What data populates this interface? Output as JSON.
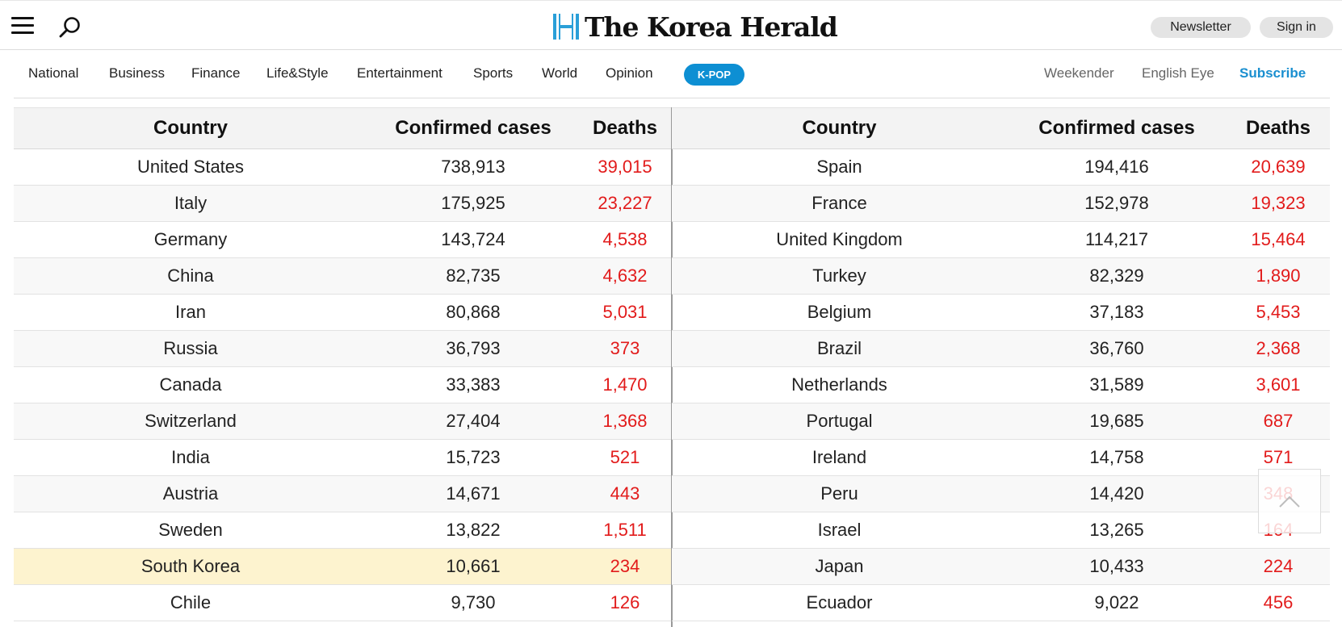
{
  "header": {
    "logo_text": "The Korea Herald",
    "newsletter_label": "Newsletter",
    "signin_label": "Sign in"
  },
  "nav": {
    "items": [
      "National",
      "Business",
      "Finance",
      "Life&Style",
      "Entertainment",
      "Sports",
      "World",
      "Opinion"
    ],
    "kpop_label": "K-POP",
    "weekender": "Weekender",
    "english_eye": "English Eye",
    "subscribe": "Subscribe"
  },
  "table": {
    "columns": [
      "Country",
      "Confirmed cases",
      "Deaths"
    ],
    "left": [
      {
        "country": "United States",
        "cases": "738,913",
        "deaths": "39,015"
      },
      {
        "country": "Italy",
        "cases": "175,925",
        "deaths": "23,227"
      },
      {
        "country": "Germany",
        "cases": "143,724",
        "deaths": "4,538"
      },
      {
        "country": "China",
        "cases": "82,735",
        "deaths": "4,632"
      },
      {
        "country": "Iran",
        "cases": "80,868",
        "deaths": "5,031"
      },
      {
        "country": "Russia",
        "cases": "36,793",
        "deaths": "373"
      },
      {
        "country": "Canada",
        "cases": "33,383",
        "deaths": "1,470"
      },
      {
        "country": "Switzerland",
        "cases": "27,404",
        "deaths": "1,368"
      },
      {
        "country": "India",
        "cases": "15,723",
        "deaths": "521"
      },
      {
        "country": "Austria",
        "cases": "14,671",
        "deaths": "443"
      },
      {
        "country": "Sweden",
        "cases": "13,822",
        "deaths": "1,511"
      },
      {
        "country": "South Korea",
        "cases": "10,661",
        "deaths": "234"
      },
      {
        "country": "Chile",
        "cases": "9,730",
        "deaths": "126"
      }
    ],
    "right": [
      {
        "country": "Spain",
        "cases": "194,416",
        "deaths": "20,639"
      },
      {
        "country": "France",
        "cases": "152,978",
        "deaths": "19,323"
      },
      {
        "country": "United Kingdom",
        "cases": "114,217",
        "deaths": "15,464"
      },
      {
        "country": "Turkey",
        "cases": "82,329",
        "deaths": "1,890"
      },
      {
        "country": "Belgium",
        "cases": "37,183",
        "deaths": "5,453"
      },
      {
        "country": "Brazil",
        "cases": "36,760",
        "deaths": "2,368"
      },
      {
        "country": "Netherlands",
        "cases": "31,589",
        "deaths": "3,601"
      },
      {
        "country": "Portugal",
        "cases": "19,685",
        "deaths": "687"
      },
      {
        "country": "Ireland",
        "cases": "14,758",
        "deaths": "571"
      },
      {
        "country": "Peru",
        "cases": "14,420",
        "deaths": "348"
      },
      {
        "country": "Israel",
        "cases": "13,265",
        "deaths": "164"
      },
      {
        "country": "Japan",
        "cases": "10,433",
        "deaths": "224"
      },
      {
        "country": "Ecuador",
        "cases": "9,022",
        "deaths": "456"
      }
    ],
    "highlighted_country": "South Korea"
  },
  "colors": {
    "accent": "#0d8fd3",
    "subscribe": "#1a8fd0",
    "deaths": "#e21b1b",
    "highlight_row": "#fdf3cf"
  },
  "icons": {
    "menu": "menu-icon",
    "search": "search-icon",
    "logo": "korea-herald-logo-icon",
    "scroll_top": "chevron-up-icon"
  }
}
